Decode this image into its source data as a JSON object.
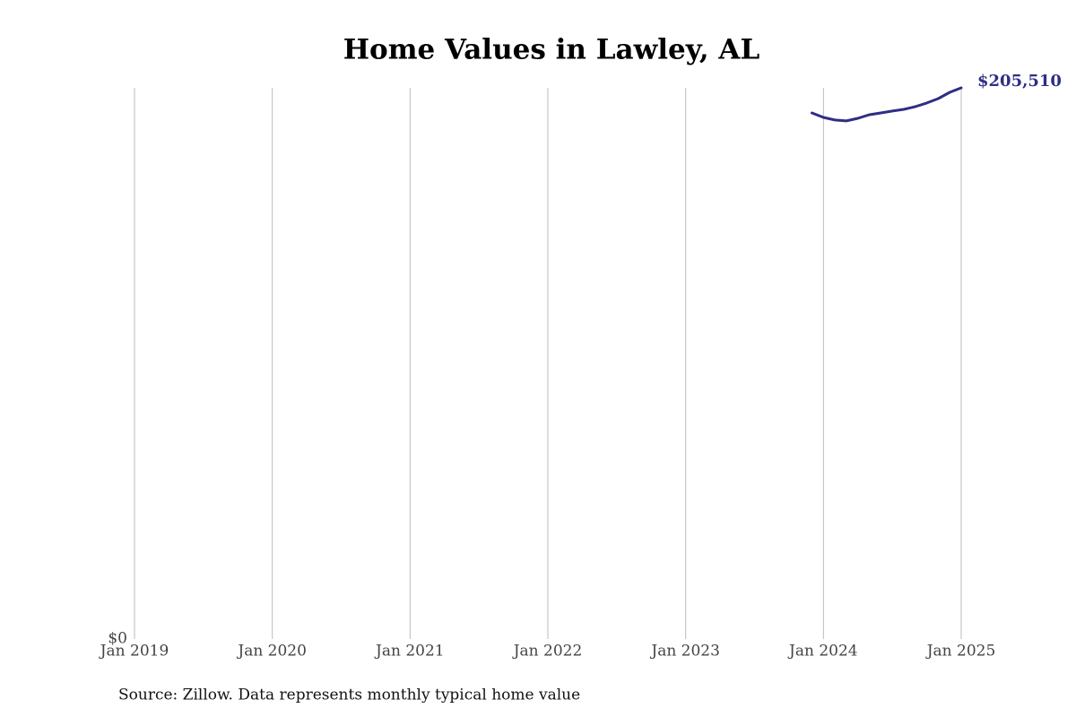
{
  "chart_data": {
    "type": "line",
    "title": "Home Values in Lawley, AL",
    "source": "Source: Zillow. Data represents monthly typical home value",
    "x": [
      "2023-12",
      "2024-01",
      "2024-02",
      "2024-03",
      "2024-04",
      "2024-05",
      "2024-06",
      "2024-07",
      "2024-08",
      "2024-09",
      "2024-10",
      "2024-11",
      "2024-12",
      "2025-01"
    ],
    "values": [
      196150,
      194480,
      193500,
      193170,
      194150,
      195500,
      196150,
      196840,
      197500,
      198500,
      199850,
      201500,
      203850,
      205510
    ],
    "value_labels": [
      null,
      null,
      null,
      null,
      null,
      null,
      null,
      null,
      null,
      null,
      null,
      null,
      null,
      "$205,510"
    ],
    "color": "#2e2e85",
    "xlim": [
      "2019-01",
      "2025-01"
    ],
    "xticks": [
      {
        "value": "2019-01",
        "label": "Jan 2019"
      },
      {
        "value": "2020-01",
        "label": "Jan 2020"
      },
      {
        "value": "2021-01",
        "label": "Jan 2021"
      },
      {
        "value": "2022-01",
        "label": "Jan 2022"
      },
      {
        "value": "2023-01",
        "label": "Jan 2023"
      },
      {
        "value": "2024-01",
        "label": "Jan 2024"
      },
      {
        "value": "2025-01",
        "label": "Jan 2025"
      }
    ],
    "ylim": [
      0,
      205510
    ],
    "yticks": [
      {
        "value": 0,
        "label": "$0"
      }
    ],
    "grid": true
  }
}
